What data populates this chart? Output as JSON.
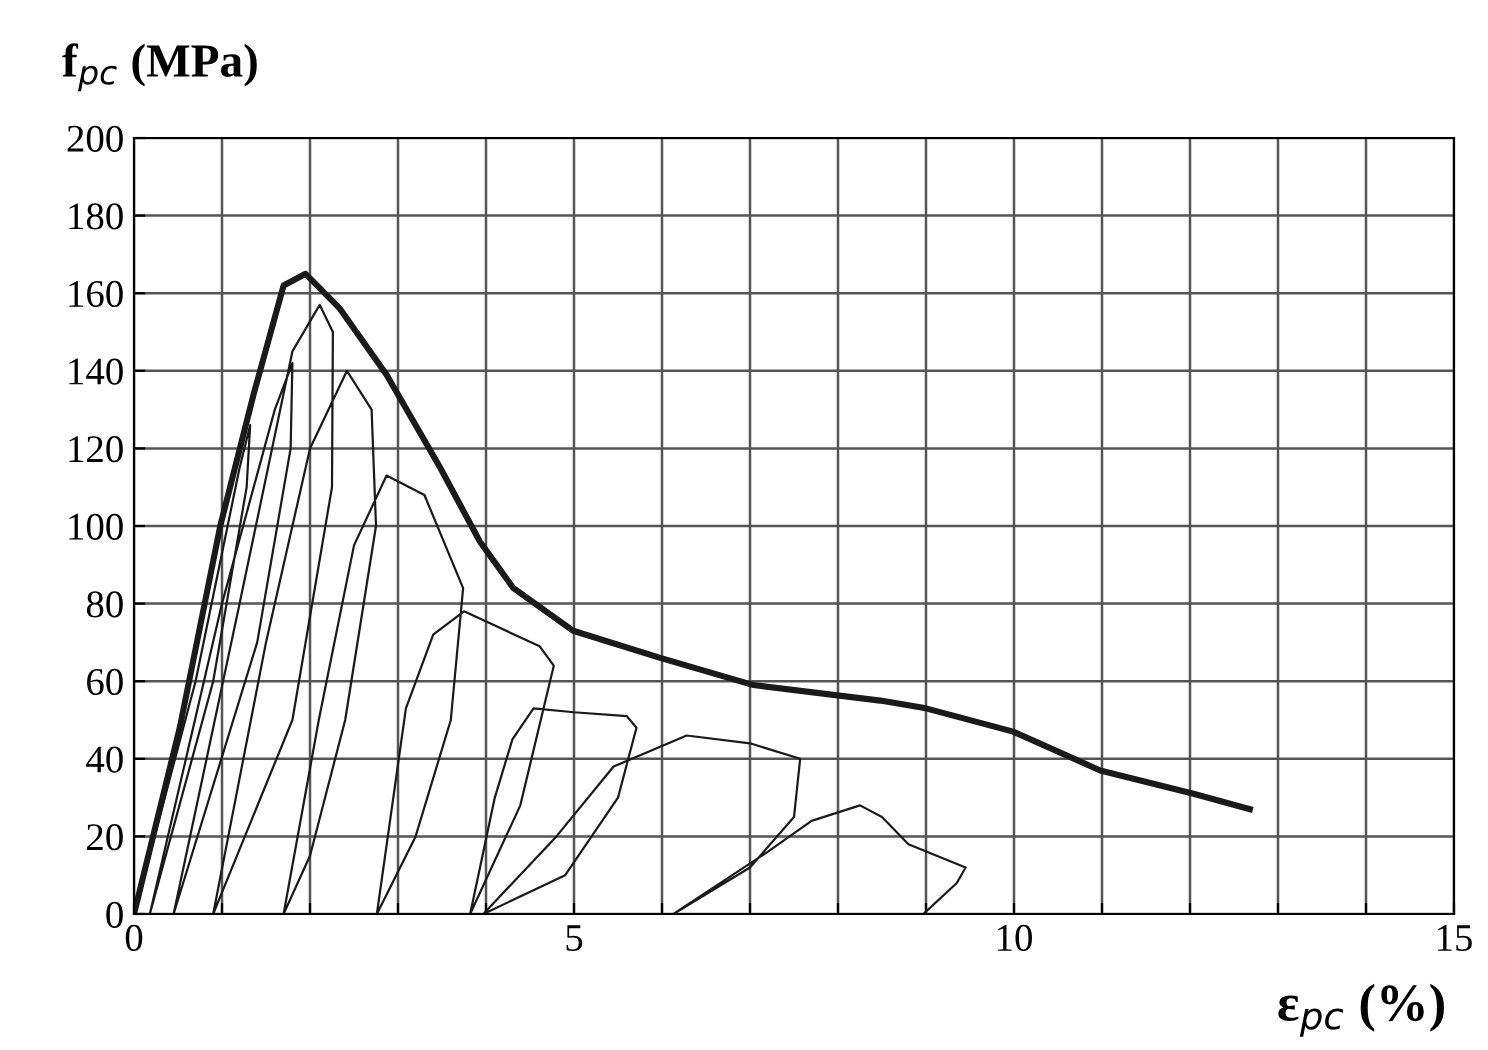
{
  "chart_data": {
    "type": "line",
    "xlabel": "ε$_{pc}$ (%)",
    "ylabel": "f$_{pc}$ (MPa)",
    "xlim": [
      0,
      15
    ],
    "ylim": [
      0,
      200
    ],
    "xticks": [
      0,
      {
        "value": 1,
        "label": null
      },
      {
        "value": 2,
        "label": null
      },
      {
        "value": 3,
        "label": null
      },
      {
        "value": 4,
        "label": null
      },
      5,
      {
        "value": 6,
        "label": null
      },
      {
        "value": 7,
        "label": null
      },
      {
        "value": 8,
        "label": null
      },
      {
        "value": 9,
        "label": null
      },
      10,
      {
        "value": 11,
        "label": null
      },
      {
        "value": 12,
        "label": null
      },
      {
        "value": 13,
        "label": null
      },
      {
        "value": 14,
        "label": null
      },
      15
    ],
    "yticks": [
      0,
      20,
      40,
      60,
      80,
      100,
      120,
      140,
      160,
      180,
      200
    ],
    "grid": true,
    "legend": false,
    "marker": "none",
    "line_style": "solid",
    "series": [
      {
        "color": "#1a1a1a",
        "x": [
          0,
          0.52,
          0.98,
          1.36,
          1.7,
          1.95,
          2.34,
          2.87,
          3.48,
          3.93,
          4.31,
          4.99,
          5.98,
          7.04,
          8.48,
          9.0,
          9.99,
          10.98,
          12.04,
          12.68
        ],
        "values": [
          0,
          48,
          100,
          134,
          162,
          165,
          156,
          139,
          115,
          96,
          84,
          73,
          66,
          59,
          55,
          53,
          47,
          37,
          31,
          27
        ]
      },
      {
        "color": "#1a1a1a",
        "x": [
          0,
          0.7,
          1.2,
          1.32,
          1.28,
          0.9,
          0.18,
          1.0,
          1.6,
          1.8,
          1.78,
          1.4,
          0.45,
          1.2,
          1.8,
          2.11,
          2.26,
          2.25,
          1.8,
          0.9,
          1.5,
          2.0,
          2.42,
          2.7,
          2.75,
          2.4,
          2.0,
          1.7,
          2.1,
          2.5,
          2.87,
          3.3,
          3.74,
          3.6,
          3.2,
          2.76,
          3.09,
          3.4,
          3.75,
          4.61,
          4.77,
          4.39,
          3.82,
          4.1,
          4.3,
          4.54,
          5.0,
          5.6,
          5.71,
          5.5,
          4.9,
          3.97,
          4.8,
          5.45,
          6.28,
          7.0,
          7.57,
          7.5,
          7.0,
          6.13,
          7.2,
          7.7,
          8.25,
          8.5,
          8.8,
          9.45,
          9.35,
          8.97
        ],
        "values": [
          0,
          60,
          115,
          126,
          110,
          60,
          0,
          80,
          130,
          142,
          120,
          70,
          0,
          80,
          145,
          157,
          150,
          110,
          50,
          0,
          70,
          120,
          140,
          130,
          100,
          50,
          15,
          0,
          50,
          95,
          113,
          108,
          84,
          50,
          20,
          0,
          53,
          72,
          78,
          69,
          64,
          28,
          0,
          30,
          45,
          53,
          52,
          51,
          48,
          30,
          10,
          0,
          20,
          38,
          46,
          44,
          40,
          25,
          12,
          0,
          16,
          24,
          28,
          25,
          18,
          12,
          8,
          0
        ]
      }
    ]
  }
}
